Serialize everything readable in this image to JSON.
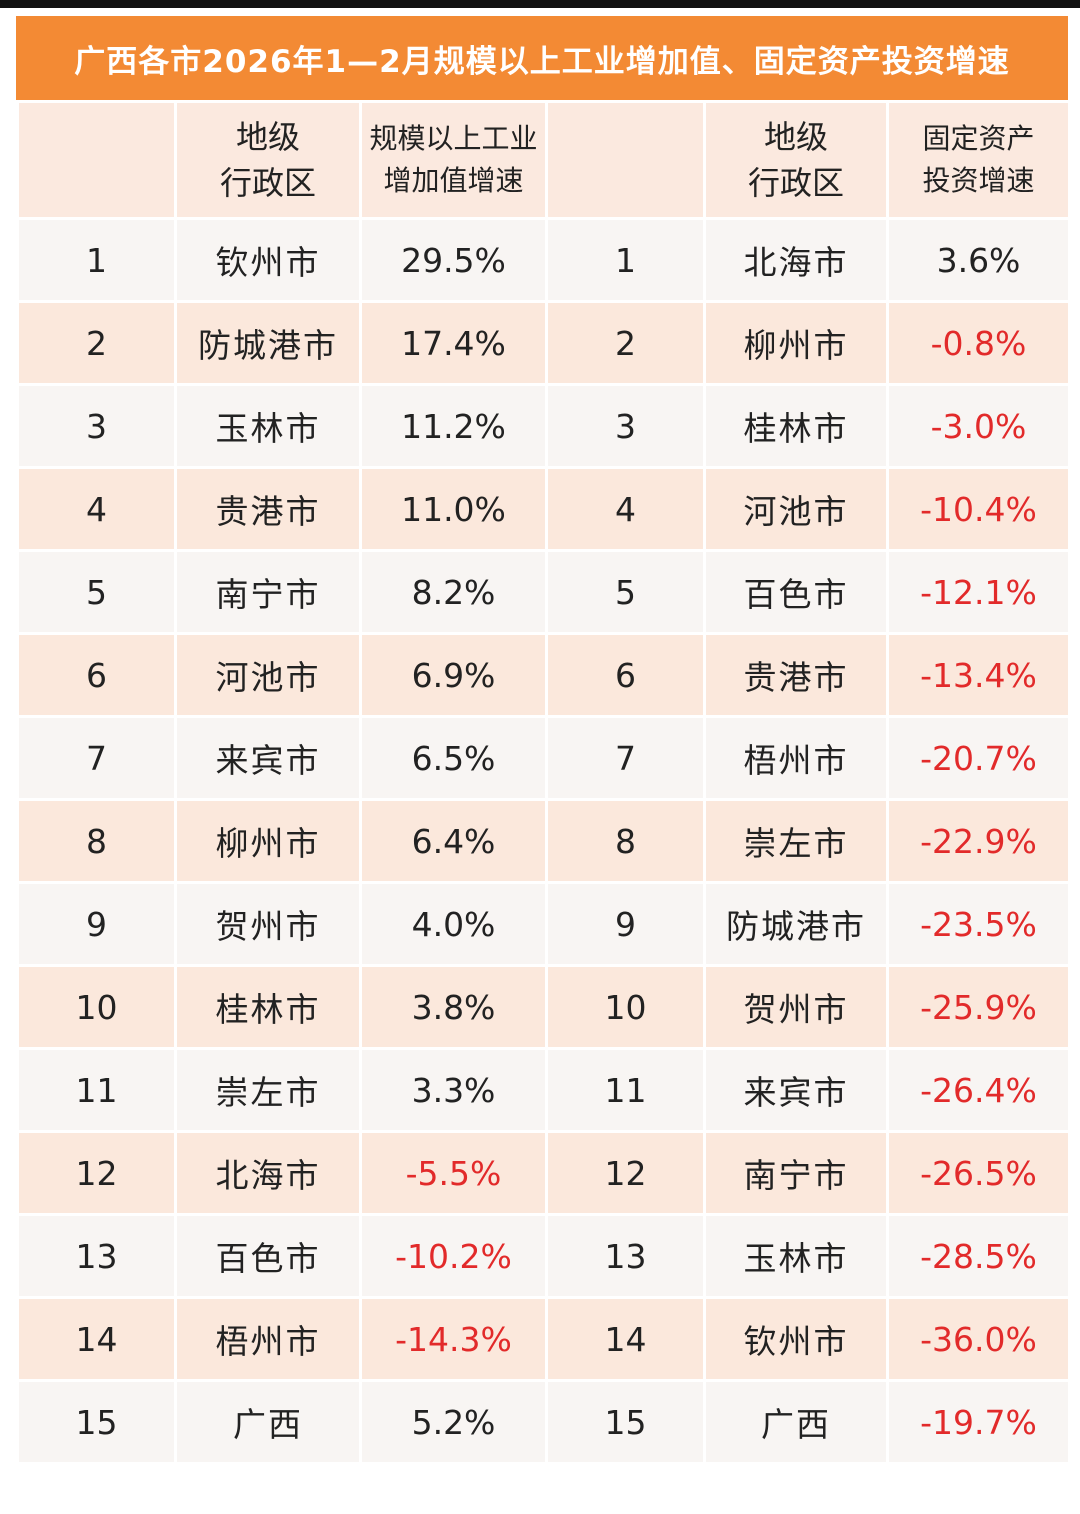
{
  "title": "广西各市2026年1—2月规模以上工业增加值、固定资产投资增速",
  "headers": {
    "rank_left": "",
    "region_left_l1": "地级",
    "region_left_l2": "行政区",
    "industry_l1": "规模以上工业",
    "industry_l2": "增加值增速",
    "rank_right": "",
    "region_right_l1": "地级",
    "region_right_l2": "行政区",
    "investment_l1": "固定资产",
    "investment_l2": "投资增速"
  },
  "rows": [
    {
      "rank_l": "1",
      "city_l": "钦州市",
      "industry": "29.5%",
      "rank_r": "1",
      "city_r": "北海市",
      "investment": "3.6%"
    },
    {
      "rank_l": "2",
      "city_l": "防城港市",
      "industry": "17.4%",
      "rank_r": "2",
      "city_r": "柳州市",
      "investment": "-0.8%"
    },
    {
      "rank_l": "3",
      "city_l": "玉林市",
      "industry": "11.2%",
      "rank_r": "3",
      "city_r": "桂林市",
      "investment": "-3.0%"
    },
    {
      "rank_l": "4",
      "city_l": "贵港市",
      "industry": "11.0%",
      "rank_r": "4",
      "city_r": "河池市",
      "investment": "-10.4%"
    },
    {
      "rank_l": "5",
      "city_l": "南宁市",
      "industry": "8.2%",
      "rank_r": "5",
      "city_r": "百色市",
      "investment": "-12.1%"
    },
    {
      "rank_l": "6",
      "city_l": "河池市",
      "industry": "6.9%",
      "rank_r": "6",
      "city_r": "贵港市",
      "investment": "-13.4%"
    },
    {
      "rank_l": "7",
      "city_l": "来宾市",
      "industry": "6.5%",
      "rank_r": "7",
      "city_r": "梧州市",
      "investment": "-20.7%"
    },
    {
      "rank_l": "8",
      "city_l": "柳州市",
      "industry": "6.4%",
      "rank_r": "8",
      "city_r": "崇左市",
      "investment": "-22.9%"
    },
    {
      "rank_l": "9",
      "city_l": "贺州市",
      "industry": "4.0%",
      "rank_r": "9",
      "city_r": "防城港市",
      "investment": "-23.5%"
    },
    {
      "rank_l": "10",
      "city_l": "桂林市",
      "industry": "3.8%",
      "rank_r": "10",
      "city_r": "贺州市",
      "investment": "-25.9%"
    },
    {
      "rank_l": "11",
      "city_l": "崇左市",
      "industry": "3.3%",
      "rank_r": "11",
      "city_r": "来宾市",
      "investment": "-26.4%"
    },
    {
      "rank_l": "12",
      "city_l": "北海市",
      "industry": "-5.5%",
      "rank_r": "12",
      "city_r": "南宁市",
      "investment": "-26.5%"
    },
    {
      "rank_l": "13",
      "city_l": "百色市",
      "industry": "-10.2%",
      "rank_r": "13",
      "city_r": "玉林市",
      "investment": "-28.5%"
    },
    {
      "rank_l": "14",
      "city_l": "梧州市",
      "industry": "-14.3%",
      "rank_r": "14",
      "city_r": "钦州市",
      "investment": "-36.0%"
    },
    {
      "rank_l": "15",
      "city_l": "广西",
      "industry": "5.2%",
      "rank_r": "15",
      "city_r": "广西",
      "investment": "-19.7%"
    }
  ],
  "colors": {
    "title_bg": "#f38a34",
    "negative_text": "#e22a2a",
    "row_even_bg": "#fbe8dc",
    "row_odd_bg": "#f8f5f3"
  }
}
